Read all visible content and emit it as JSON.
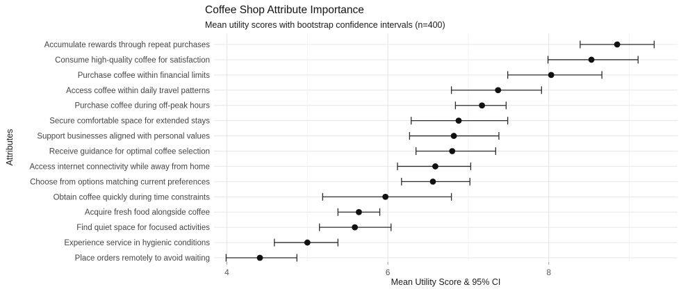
{
  "header": {
    "title": "Coffee Shop Attribute Importance",
    "subtitle": "Mean utility scores with bootstrap confidence intervals (n=400)"
  },
  "chart_data": {
    "type": "scatter",
    "variant": "horizontal-dotplot-with-error-bars",
    "title": "Coffee Shop Attribute Importance",
    "subtitle": "Mean utility scores with bootstrap confidence intervals (n=400)",
    "xlabel": "Mean Utility Score & 95% CI",
    "ylabel": "Attributes",
    "xlim": [
      3.84,
      9.6
    ],
    "x_major_ticks": [
      4,
      6,
      8
    ],
    "x_minor_gridlines": [
      5,
      7,
      9
    ],
    "grid": "major-and-minor, light gray on white",
    "legend": "none",
    "points": [
      {
        "label": "Accumulate rewards through repeat purchases",
        "mean": 8.85,
        "ci_low": 8.39,
        "ci_high": 9.31
      },
      {
        "label": "Consume high-quality coffee for satisfaction",
        "mean": 8.53,
        "ci_low": 7.99,
        "ci_high": 9.11
      },
      {
        "label": "Purchase coffee within financial limits",
        "mean": 8.03,
        "ci_low": 7.49,
        "ci_high": 8.66
      },
      {
        "label": "Access coffee within daily travel patterns",
        "mean": 7.37,
        "ci_low": 6.79,
        "ci_high": 7.91
      },
      {
        "label": "Purchase coffee during off-peak hours",
        "mean": 7.17,
        "ci_low": 6.84,
        "ci_high": 7.47
      },
      {
        "label": "Secure comfortable space for extended stays",
        "mean": 6.88,
        "ci_low": 6.29,
        "ci_high": 7.49
      },
      {
        "label": "Support businesses aligned with personal values",
        "mean": 6.82,
        "ci_low": 6.27,
        "ci_high": 7.38
      },
      {
        "label": "Receive guidance for optimal coffee selection",
        "mean": 6.8,
        "ci_low": 6.35,
        "ci_high": 7.34
      },
      {
        "label": "Access internet connectivity while away from home",
        "mean": 6.59,
        "ci_low": 6.12,
        "ci_high": 7.03
      },
      {
        "label": "Choose from options matching current preferences",
        "mean": 6.56,
        "ci_low": 6.17,
        "ci_high": 7.02
      },
      {
        "label": "Obtain coffee quickly during time constraints",
        "mean": 5.97,
        "ci_low": 5.19,
        "ci_high": 6.79
      },
      {
        "label": "Acquire fresh food alongside coffee",
        "mean": 5.64,
        "ci_low": 5.38,
        "ci_high": 5.9
      },
      {
        "label": "Find quiet space for focused activities",
        "mean": 5.59,
        "ci_low": 5.15,
        "ci_high": 6.04
      },
      {
        "label": "Experience service in hygienic conditions",
        "mean": 5.0,
        "ci_low": 4.59,
        "ci_high": 5.38
      },
      {
        "label": "Place orders remotely to avoid waiting",
        "mean": 4.41,
        "ci_low": 3.99,
        "ci_high": 4.87
      }
    ],
    "colors": {
      "point": "#111111",
      "errorbar": "#2b2b2b",
      "grid_major": "#e6e6e6",
      "grid_minor": "#f2f2f2",
      "tick_mark": "#9a9a9a",
      "axis_text": "#5a5a5a",
      "label_text": "#454545",
      "background": "#ffffff"
    }
  }
}
